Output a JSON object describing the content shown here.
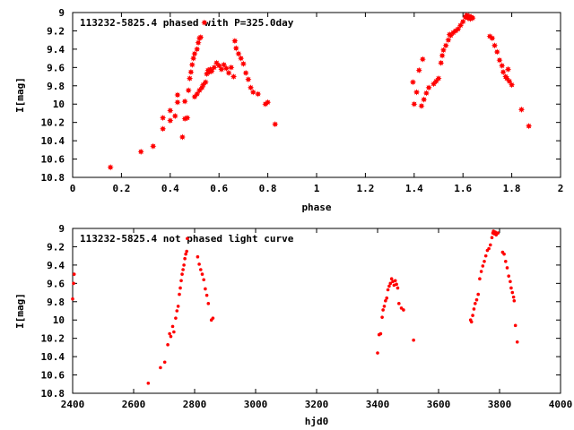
{
  "chart_data": [
    {
      "type": "scatter",
      "title": "113232-5825.4 phased with P=325.0day",
      "xlabel": "phase",
      "ylabel": "I[mag]",
      "xlim": [
        0,
        2
      ],
      "ylim": [
        10.8,
        9
      ],
      "y_inverted": true,
      "x_ticks": [
        "0",
        "0.2",
        "0.4",
        "0.6",
        "0.8",
        "1",
        "1.2",
        "1.4",
        "1.6",
        "1.8",
        "2"
      ],
      "y_ticks": [
        "9",
        "9.2",
        "9.4",
        "9.6",
        "9.8",
        "10",
        "10.2",
        "10.4",
        "10.6",
        "10.8"
      ],
      "marker": "star",
      "color": "#ff0000",
      "series": [
        {
          "points": [
            [
              0.155,
              10.69
            ],
            [
              0.28,
              10.52
            ],
            [
              0.33,
              10.46
            ],
            [
              0.37,
              10.27
            ],
            [
              0.37,
              10.15
            ],
            [
              0.4,
              10.18
            ],
            [
              0.4,
              10.07
            ],
            [
              0.42,
              10.13
            ],
            [
              0.43,
              9.98
            ],
            [
              0.43,
              9.9
            ],
            [
              0.45,
              10.36
            ],
            [
              0.46,
              10.16
            ],
            [
              0.46,
              9.97
            ],
            [
              0.47,
              10.15
            ],
            [
              0.475,
              9.85
            ],
            [
              0.48,
              9.72
            ],
            [
              0.485,
              9.65
            ],
            [
              0.49,
              9.57
            ],
            [
              0.495,
              9.5
            ],
            [
              0.5,
              9.92
            ],
            [
              0.5,
              9.45
            ],
            [
              0.51,
              9.89
            ],
            [
              0.51,
              9.4
            ],
            [
              0.515,
              9.33
            ],
            [
              0.52,
              9.85
            ],
            [
              0.52,
              9.28
            ],
            [
              0.525,
              9.27
            ],
            [
              0.53,
              9.82
            ],
            [
              0.535,
              9.79
            ],
            [
              0.54,
              9.11
            ],
            [
              0.545,
              9.76
            ],
            [
              0.55,
              9.67
            ],
            [
              0.555,
              9.63
            ],
            [
              0.56,
              9.65
            ],
            [
              0.565,
              9.62
            ],
            [
              0.57,
              9.64
            ],
            [
              0.58,
              9.6
            ],
            [
              0.59,
              9.55
            ],
            [
              0.6,
              9.58
            ],
            [
              0.61,
              9.62
            ],
            [
              0.62,
              9.57
            ],
            [
              0.63,
              9.61
            ],
            [
              0.64,
              9.66
            ],
            [
              0.65,
              9.6
            ],
            [
              0.66,
              9.7
            ],
            [
              0.665,
              9.31
            ],
            [
              0.67,
              9.39
            ],
            [
              0.68,
              9.45
            ],
            [
              0.69,
              9.5
            ],
            [
              0.7,
              9.56
            ],
            [
              0.71,
              9.66
            ],
            [
              0.72,
              9.73
            ],
            [
              0.73,
              9.82
            ],
            [
              0.74,
              9.87
            ],
            [
              0.76,
              9.89
            ],
            [
              0.79,
              10.0
            ],
            [
              0.8,
              9.98
            ],
            [
              0.83,
              10.22
            ]
          ]
        },
        {
          "points": [
            [
              1.395,
              9.76
            ],
            [
              1.4,
              10.0
            ],
            [
              1.41,
              9.87
            ],
            [
              1.42,
              9.63
            ],
            [
              1.43,
              10.02
            ],
            [
              1.435,
              9.51
            ],
            [
              1.44,
              9.95
            ],
            [
              1.45,
              9.88
            ],
            [
              1.46,
              9.82
            ],
            [
              1.48,
              9.78
            ],
            [
              1.49,
              9.75
            ],
            [
              1.5,
              9.72
            ],
            [
              1.51,
              9.55
            ],
            [
              1.515,
              9.47
            ],
            [
              1.52,
              9.41
            ],
            [
              1.53,
              9.36
            ],
            [
              1.54,
              9.3
            ],
            [
              1.545,
              9.24
            ],
            [
              1.55,
              9.25
            ],
            [
              1.56,
              9.22
            ],
            [
              1.57,
              9.2
            ],
            [
              1.58,
              9.18
            ],
            [
              1.59,
              9.14
            ],
            [
              1.6,
              9.1
            ],
            [
              1.61,
              9.05
            ],
            [
              1.615,
              9.03
            ],
            [
              1.62,
              9.06
            ],
            [
              1.625,
              9.04
            ],
            [
              1.63,
              9.07
            ],
            [
              1.635,
              9.05
            ],
            [
              1.64,
              9.06
            ],
            [
              1.71,
              9.26
            ],
            [
              1.72,
              9.28
            ],
            [
              1.73,
              9.36
            ],
            [
              1.74,
              9.43
            ],
            [
              1.75,
              9.52
            ],
            [
              1.76,
              9.58
            ],
            [
              1.765,
              9.65
            ],
            [
              1.775,
              9.7
            ],
            [
              1.78,
              9.72
            ],
            [
              1.785,
              9.62
            ],
            [
              1.79,
              9.75
            ],
            [
              1.8,
              9.79
            ],
            [
              1.84,
              10.06
            ],
            [
              1.87,
              10.24
            ]
          ]
        }
      ]
    },
    {
      "type": "scatter",
      "title": "113232-5825.4 not phased light curve",
      "xlabel": "hjd0",
      "ylabel": "I[mag]",
      "xlim": [
        2400,
        4000
      ],
      "ylim": [
        10.8,
        9
      ],
      "y_inverted": true,
      "x_ticks": [
        "2400",
        "2600",
        "2800",
        "3000",
        "3200",
        "3400",
        "3600",
        "3800",
        "4000"
      ],
      "y_ticks": [
        "9",
        "9.2",
        "9.4",
        "9.6",
        "9.8",
        "10",
        "10.2",
        "10.4",
        "10.6",
        "10.8"
      ],
      "marker": "dot",
      "color": "#ff0000",
      "series": [
        {
          "points": [
            [
              2400,
              9.77
            ],
            [
              2403,
              9.6
            ],
            [
              2405,
              9.5
            ],
            [
              2648,
              10.69
            ],
            [
              2688,
              10.52
            ],
            [
              2702,
              10.46
            ],
            [
              2712,
              10.27
            ],
            [
              2718,
              10.15
            ],
            [
              2722,
              10.18
            ],
            [
              2728,
              10.07
            ],
            [
              2732,
              10.13
            ],
            [
              2738,
              9.98
            ],
            [
              2742,
              9.9
            ],
            [
              2746,
              9.85
            ],
            [
              2750,
              9.72
            ],
            [
              2753,
              9.65
            ],
            [
              2756,
              9.57
            ],
            [
              2759,
              9.5
            ],
            [
              2762,
              9.45
            ],
            [
              2765,
              9.4
            ],
            [
              2768,
              9.33
            ],
            [
              2771,
              9.28
            ],
            [
              2774,
              9.25
            ],
            [
              2776,
              9.11
            ],
            [
              2810,
              9.31
            ],
            [
              2815,
              9.39
            ],
            [
              2820,
              9.45
            ],
            [
              2825,
              9.5
            ],
            [
              2830,
              9.56
            ],
            [
              2835,
              9.66
            ],
            [
              2840,
              9.73
            ],
            [
              2845,
              9.82
            ],
            [
              2855,
              10.0
            ],
            [
              2860,
              9.98
            ],
            [
              3400,
              10.36
            ],
            [
              3405,
              10.16
            ],
            [
              3410,
              10.15
            ],
            [
              3415,
              9.97
            ],
            [
              3418,
              9.89
            ],
            [
              3422,
              9.85
            ],
            [
              3426,
              9.79
            ],
            [
              3430,
              9.76
            ],
            [
              3434,
              9.67
            ],
            [
              3438,
              9.63
            ],
            [
              3442,
              9.6
            ],
            [
              3446,
              9.55
            ],
            [
              3450,
              9.58
            ],
            [
              3454,
              9.62
            ],
            [
              3458,
              9.57
            ],
            [
              3462,
              9.61
            ],
            [
              3466,
              9.65
            ],
            [
              3470,
              9.82
            ],
            [
              3478,
              9.87
            ],
            [
              3485,
              9.89
            ],
            [
              3518,
              10.22
            ],
            [
              3705,
              10.0
            ],
            [
              3708,
              10.02
            ],
            [
              3712,
              9.95
            ],
            [
              3716,
              9.88
            ],
            [
              3720,
              9.82
            ],
            [
              3725,
              9.78
            ],
            [
              3730,
              9.72
            ],
            [
              3735,
              9.55
            ],
            [
              3740,
              9.47
            ],
            [
              3745,
              9.41
            ],
            [
              3750,
              9.36
            ],
            [
              3755,
              9.3
            ],
            [
              3760,
              9.24
            ],
            [
              3765,
              9.22
            ],
            [
              3770,
              9.18
            ],
            [
              3775,
              9.1
            ],
            [
              3778,
              9.05
            ],
            [
              3780,
              9.03
            ],
            [
              3783,
              9.06
            ],
            [
              3786,
              9.04
            ],
            [
              3789,
              9.07
            ],
            [
              3795,
              9.05
            ],
            [
              3810,
              9.26
            ],
            [
              3815,
              9.28
            ],
            [
              3820,
              9.36
            ],
            [
              3825,
              9.43
            ],
            [
              3830,
              9.52
            ],
            [
              3835,
              9.58
            ],
            [
              3838,
              9.65
            ],
            [
              3842,
              9.7
            ],
            [
              3846,
              9.75
            ],
            [
              3848,
              9.79
            ],
            [
              3852,
              10.06
            ],
            [
              3858,
              10.24
            ]
          ]
        }
      ]
    }
  ]
}
